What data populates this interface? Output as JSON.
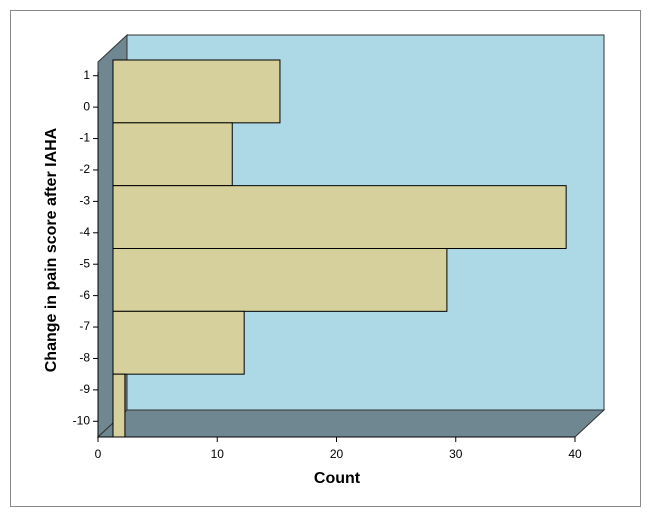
{
  "chart_data": {
    "type": "histogram",
    "orientation": "horizontal",
    "x_label": "Count",
    "y_label": "Change in pain score after IAHA",
    "bins": [
      1.5,
      -0.5,
      -2.5,
      -4.5,
      -6.5,
      -8.5,
      -10.5
    ],
    "values": [
      14,
      10,
      38,
      28,
      11,
      1
    ],
    "color": "#d6d19c",
    "xlim": [
      0,
      40
    ],
    "xticks": [
      0,
      10,
      20,
      30,
      40
    ],
    "ylim": [
      -10.5,
      1.5
    ],
    "yticks": [
      1,
      0,
      -1,
      -2,
      -3,
      -4,
      -5,
      -6,
      -7,
      -8,
      -9,
      -10
    ]
  }
}
